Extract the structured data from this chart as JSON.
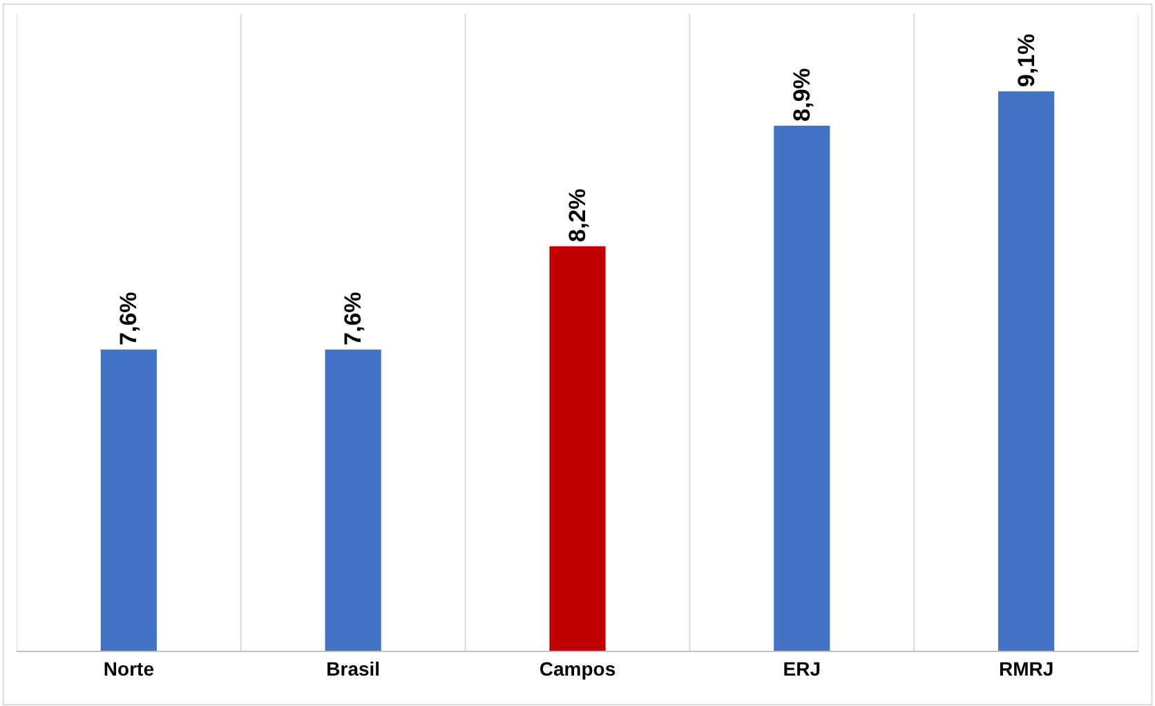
{
  "chart_data": {
    "type": "bar",
    "categories": [
      "Norte",
      "Brasil",
      "Campos",
      "ERJ",
      "RMRJ"
    ],
    "values": [
      7.6,
      7.6,
      8.2,
      8.9,
      9.1
    ],
    "colors": [
      "#4472c4",
      "#4472c4",
      "#c00000",
      "#4472c4",
      "#4472c4"
    ],
    "value_labels": [
      "7,6%",
      "7,6%",
      "8,2%",
      "8,9%",
      "9,1%"
    ],
    "ylim": [
      5.85,
      9.55
    ],
    "tick_labels": "x",
    "grid": "x"
  }
}
